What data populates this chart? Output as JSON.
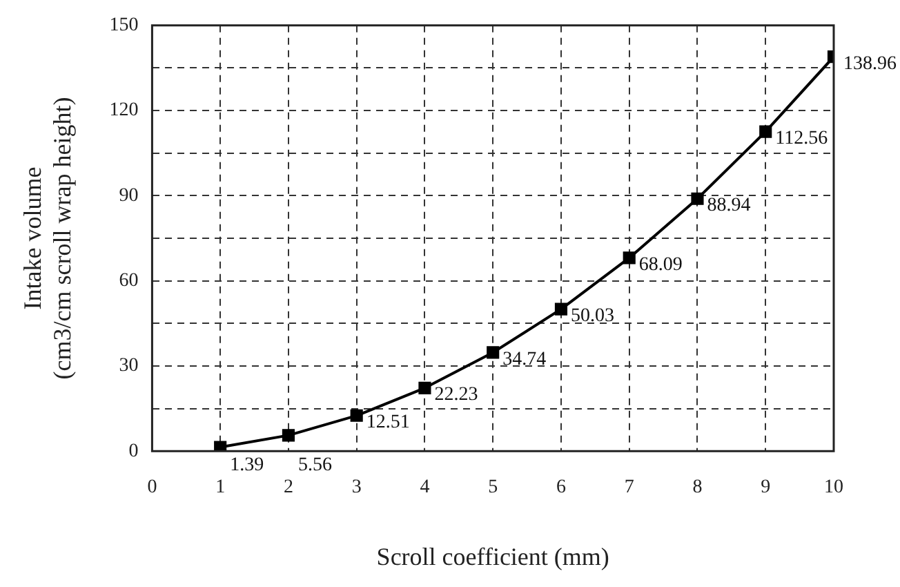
{
  "chart_data": {
    "type": "line",
    "xlabel": "Scroll coefficient (mm)",
    "ylabel": "Intake volume\n(cm3/cm scroll wrap height)",
    "x": [
      1,
      2,
      3,
      4,
      5,
      6,
      7,
      8,
      9,
      10
    ],
    "series": [
      {
        "color": "#000000",
        "values": [
          1.39,
          5.56,
          12.51,
          22.23,
          34.74,
          50.03,
          68.09,
          88.94,
          112.56,
          138.96
        ]
      }
    ],
    "xlim": [
      0,
      10
    ],
    "xticks": [
      0,
      1,
      2,
      3,
      4,
      5,
      6,
      7,
      8,
      9,
      10
    ],
    "ylim": [
      0,
      150
    ],
    "yticks": [
      0,
      {
        "value": 15,
        "label": null
      },
      30,
      {
        "value": 45,
        "label": null
      },
      60,
      {
        "value": 75,
        "label": null
      },
      90,
      {
        "value": 105,
        "label": null
      },
      120,
      {
        "value": 135,
        "label": null
      },
      150
    ],
    "grid": true,
    "legend": false,
    "marker": "square",
    "line_style": "solid",
    "data_labels": true
  }
}
